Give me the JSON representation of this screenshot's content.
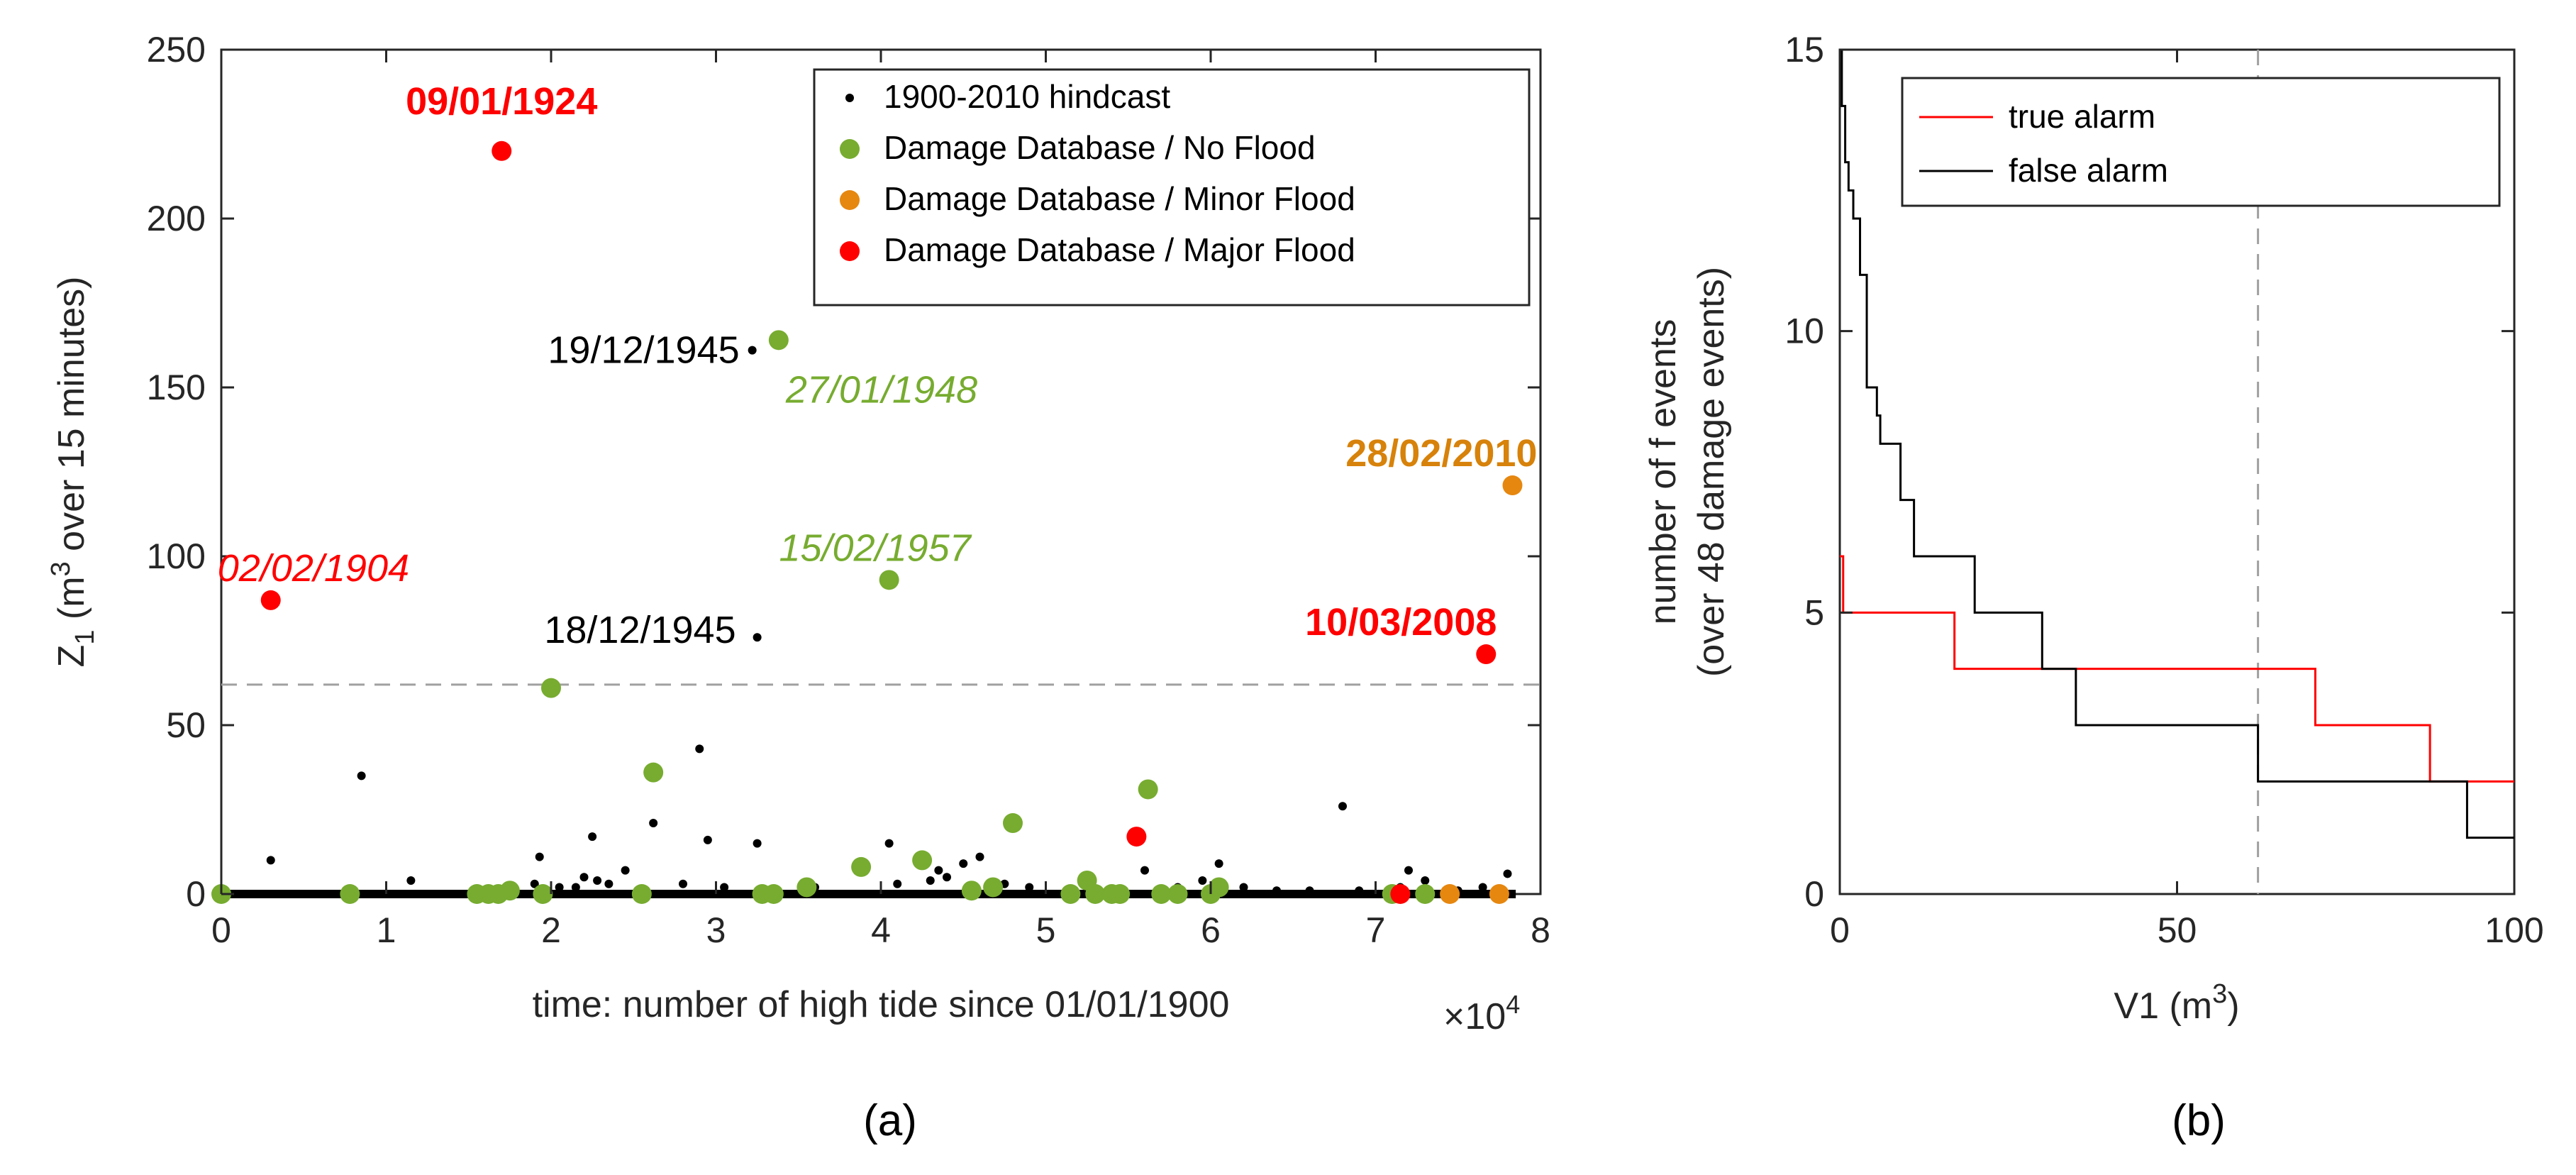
{
  "colors": {
    "hindcast": "#000000",
    "no_flood": "#77ac30",
    "minor_flood": "#d95319",
    "minor_flood_marker": "#e6870f",
    "major_flood": "#ff0000",
    "true_alarm": "#ff0000",
    "false_alarm": "#000000",
    "dashed": "#a0a0a0",
    "no_flood_text": "#77ac30",
    "minor_flood_text": "#d7820a"
  },
  "chart_data": [
    {
      "type": "scatter",
      "panel_label": "(a)",
      "xlabel": "time: number of high tide since 01/01/1900",
      "x_multiplier": "×10",
      "x_multiplier_exp": "4",
      "ylabel": {
        "pre": "Z",
        "sub": "1",
        "mid": " (m",
        "sup": "3",
        "post": " over 15 minutes)"
      },
      "xlim": [
        0,
        8
      ],
      "ylim": [
        0,
        250
      ],
      "xticks": [
        "0",
        "1",
        "2",
        "3",
        "4",
        "5",
        "6",
        "7",
        "8"
      ],
      "yticks": [
        "0",
        "50",
        "100",
        "150",
        "200",
        "250"
      ],
      "threshold": 62,
      "legend": {
        "position": "top-right",
        "entries": [
          {
            "key": "hindcast",
            "label": "1900-2010 hindcast"
          },
          {
            "key": "no_flood",
            "label": "Damage Database / No Flood"
          },
          {
            "key": "minor_flood",
            "label": "Damage Database / Minor Flood"
          },
          {
            "key": "major_flood",
            "label": "Damage Database / Major Flood"
          }
        ]
      },
      "series": [
        {
          "name": "1900-2010 hindcast",
          "key": "hindcast",
          "points": [
            [
              0.3,
              10
            ],
            [
              0.85,
              35
            ],
            [
              1.15,
              4
            ],
            [
              1.9,
              3
            ],
            [
              1.93,
              11
            ],
            [
              2.05,
              2
            ],
            [
              2.15,
              2
            ],
            [
              2.2,
              5
            ],
            [
              2.25,
              17
            ],
            [
              2.28,
              4
            ],
            [
              2.35,
              3
            ],
            [
              2.45,
              7
            ],
            [
              2.62,
              21
            ],
            [
              2.8,
              3
            ],
            [
              2.9,
              43
            ],
            [
              2.95,
              16
            ],
            [
              3.05,
              2
            ],
            [
              3.22,
              161
            ],
            [
              3.25,
              76
            ],
            [
              3.25,
              15
            ],
            [
              3.6,
              2
            ],
            [
              4.05,
              15
            ],
            [
              4.1,
              3
            ],
            [
              4.3,
              4
            ],
            [
              4.35,
              7
            ],
            [
              4.4,
              5
            ],
            [
              4.5,
              9
            ],
            [
              4.6,
              11
            ],
            [
              4.75,
              3
            ],
            [
              4.9,
              2
            ],
            [
              5.25,
              4
            ],
            [
              5.6,
              7
            ],
            [
              5.8,
              2
            ],
            [
              5.95,
              4
            ],
            [
              6.05,
              9
            ],
            [
              6.2,
              2
            ],
            [
              6.4,
              1
            ],
            [
              6.6,
              1
            ],
            [
              6.8,
              26
            ],
            [
              6.9,
              1
            ],
            [
              7.15,
              2
            ],
            [
              7.2,
              7
            ],
            [
              7.3,
              4
            ],
            [
              7.5,
              1
            ],
            [
              7.65,
              2
            ],
            [
              7.8,
              6
            ]
          ]
        },
        {
          "name": "Damage Database / No Flood",
          "key": "no_flood",
          "points": [
            [
              0.0,
              0
            ],
            [
              0.78,
              0
            ],
            [
              1.55,
              0
            ],
            [
              1.62,
              0
            ],
            [
              1.68,
              0
            ],
            [
              1.75,
              1
            ],
            [
              1.95,
              0
            ],
            [
              2.0,
              61
            ],
            [
              2.55,
              0
            ],
            [
              2.62,
              36
            ],
            [
              3.28,
              0
            ],
            [
              3.35,
              0
            ],
            [
              3.38,
              164
            ],
            [
              3.55,
              2
            ],
            [
              3.88,
              8
            ],
            [
              4.05,
              93
            ],
            [
              4.25,
              10
            ],
            [
              4.55,
              1
            ],
            [
              4.68,
              2
            ],
            [
              4.8,
              21
            ],
            [
              5.15,
              0
            ],
            [
              5.25,
              4
            ],
            [
              5.3,
              0
            ],
            [
              5.4,
              0
            ],
            [
              5.45,
              0
            ],
            [
              5.62,
              31
            ],
            [
              5.7,
              0
            ],
            [
              5.8,
              0
            ],
            [
              6.0,
              0
            ],
            [
              6.05,
              2
            ],
            [
              7.1,
              0
            ],
            [
              7.3,
              0
            ]
          ]
        },
        {
          "name": "Damage Database / Minor Flood",
          "key": "minor_flood",
          "points": [
            [
              7.45,
              0
            ],
            [
              7.75,
              0
            ],
            [
              7.83,
              121
            ]
          ]
        },
        {
          "name": "Damage Database / Major Flood",
          "key": "major_flood",
          "points": [
            [
              0.3,
              87
            ],
            [
              1.7,
              220
            ],
            [
              5.55,
              17
            ],
            [
              7.15,
              0
            ],
            [
              7.67,
              71
            ]
          ]
        }
      ],
      "annotations": [
        {
          "text": "09/01/1924",
          "x": 1.7,
          "y": 220,
          "style": "bold",
          "key": "major_flood",
          "align": "middle",
          "dx": 0,
          "dy": -70
        },
        {
          "text": "19/12/1945",
          "x": 3.22,
          "y": 161,
          "style": "normal",
          "key": "hindcast",
          "align": "end",
          "dx": -18,
          "dy": 0
        },
        {
          "text": "27/01/1948",
          "x": 3.38,
          "y": 164,
          "style": "italic",
          "key": "no_flood_text",
          "align": "start",
          "dx": 10,
          "dy": 70
        },
        {
          "text": "28/02/2010",
          "x": 7.83,
          "y": 121,
          "style": "bold",
          "key": "minor_flood_text",
          "align": "end",
          "dx": 35,
          "dy": -45
        },
        {
          "text": "02/02/1904",
          "x": 0.3,
          "y": 87,
          "style": "italic",
          "key": "major_flood",
          "align": "start",
          "dx": -75,
          "dy": -45
        },
        {
          "text": "15/02/1957",
          "x": 4.05,
          "y": 93,
          "style": "italic",
          "key": "no_flood_text",
          "align": "middle",
          "dx": -20,
          "dy": -45
        },
        {
          "text": "18/12/1945",
          "x": 3.25,
          "y": 76,
          "style": "normal",
          "key": "hindcast",
          "align": "end",
          "dx": -30,
          "dy": -10
        },
        {
          "text": "10/03/2008",
          "x": 7.67,
          "y": 71,
          "style": "bold",
          "key": "major_flood",
          "align": "middle",
          "dx": -120,
          "dy": -45
        }
      ]
    },
    {
      "type": "line",
      "panel_label": "(b)",
      "xlabel": {
        "pre": "V1 (m",
        "sup": "3",
        "post": ")"
      },
      "ylabel_line1": "number of f events",
      "ylabel_line2": "(over 48 damage events)",
      "xlim": [
        0,
        100
      ],
      "ylim": [
        0,
        15
      ],
      "xticks": [
        "0",
        "50",
        "100"
      ],
      "yticks": [
        "0",
        "5",
        "10",
        "15"
      ],
      "threshold": 62,
      "legend": {
        "position": "top-left",
        "entries": [
          {
            "key": "true_alarm",
            "label": "true alarm"
          },
          {
            "key": "false_alarm",
            "label": "false alarm"
          }
        ]
      },
      "series": [
        {
          "name": "true alarm",
          "key": "true_alarm",
          "step": true,
          "x": [
            0,
            0.5,
            17,
            70.5,
            87.5,
            100
          ],
          "y": [
            6,
            5,
            4,
            3,
            2,
            2
          ]
        },
        {
          "name": "false alarm",
          "key": "false_alarm",
          "step": true,
          "x": [
            0,
            0.3,
            0.8,
            1.3,
            2,
            3,
            4,
            4.5,
            5.5,
            6,
            9,
            10.5,
            11,
            20,
            30,
            35,
            62,
            93,
            100
          ],
          "y": [
            15,
            14,
            13,
            12.5,
            12,
            11,
            9,
            9,
            8.5,
            8,
            7,
            7,
            6,
            5,
            4,
            3,
            2,
            1,
            1
          ]
        }
      ]
    }
  ]
}
